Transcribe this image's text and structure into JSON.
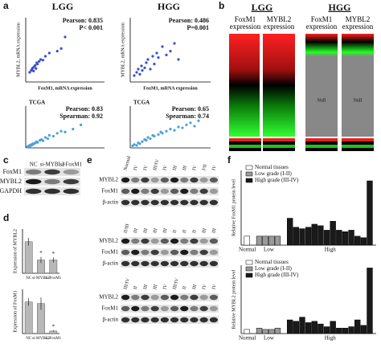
{
  "panel_labels": [
    "a",
    "b",
    "c",
    "d",
    "e",
    "f"
  ],
  "panel_a_headers": [
    "LGG",
    "HGG"
  ],
  "heatmap": {
    "groups": [
      {
        "title": "LGG",
        "columns": [
          "FoxM1 expression",
          "MYBL2 expression"
        ]
      },
      {
        "title": "HGG",
        "columns": [
          "FoxM1 expression",
          "MYBL2 expression"
        ],
        "null_labels": [
          "Null",
          "Null"
        ]
      }
    ]
  },
  "blot_c": {
    "lanes": [
      "NC",
      "si-MYBL2",
      "si-FoxM1"
    ],
    "rows": [
      "FoxM1",
      "MYBL2",
      "GAPDH"
    ]
  },
  "blots_e": [
    {
      "lanes": [
        "Normal",
        "IV",
        "IV",
        "III/IV",
        "IV",
        "III",
        "III",
        "IV",
        "I/II",
        "IV"
      ],
      "rows": [
        "MYBL2",
        "FoxM1",
        "β-actin"
      ]
    },
    {
      "lanes": [
        "II/III",
        "III",
        "III",
        "III",
        "III",
        "II",
        "II",
        "II",
        "III",
        "III"
      ],
      "rows": [
        "MYBL2",
        "FoxM1",
        "β-actin"
      ]
    },
    {
      "lanes": [
        "III/IV",
        "II",
        "III",
        "III",
        "IV",
        "III/IV",
        "II",
        "III",
        "IV",
        "IV"
      ],
      "rows": [
        "MYBL2",
        "FoxM1",
        "β-actin"
      ]
    }
  ],
  "chart_data": [
    {
      "type": "scatter",
      "x_label": "FoxM1, mRNA expression",
      "y_label": "MYBL2, mRNA expression",
      "annotations": [
        "Pearson: 0.835",
        "P< 0.001"
      ],
      "color": "#3a4fd0",
      "xlim": [
        0,
        100
      ],
      "ylim": [
        0,
        100
      ],
      "x": [
        5,
        7,
        8,
        9,
        10,
        11,
        12,
        13,
        14,
        15,
        17,
        19,
        22,
        25,
        30,
        40,
        45,
        50
      ],
      "y": [
        15,
        18,
        20,
        22,
        17,
        24,
        26,
        21,
        30,
        28,
        32,
        35,
        34,
        40,
        45,
        48,
        52,
        70
      ]
    },
    {
      "type": "scatter",
      "x_label": "FoxM1, mRNA expression",
      "y_label": "MYBL2, mRNA expression",
      "annotations": [
        "Pearson: 0.486",
        "P=0.001"
      ],
      "color": "#3a4fd0",
      "xlim": [
        0,
        100
      ],
      "ylim": [
        0,
        100
      ],
      "x": [
        5,
        8,
        10,
        12,
        14,
        15,
        18,
        20,
        22,
        25,
        28,
        30,
        33,
        35,
        40,
        45,
        50,
        55,
        60
      ],
      "y": [
        10,
        15,
        20,
        12,
        25,
        18,
        22,
        30,
        35,
        20,
        40,
        28,
        45,
        38,
        55,
        42,
        48,
        60,
        35
      ]
    },
    {
      "type": "scatter",
      "title": "TCGA",
      "annotations": [
        "Pearson: 0.83",
        "Spearman: 0.92"
      ],
      "color": "#4aa0d8",
      "xlim": [
        0,
        100
      ],
      "ylim": [
        0,
        100
      ],
      "x": [
        2,
        3,
        4,
        5,
        6,
        7,
        8,
        9,
        10,
        12,
        14,
        15,
        18,
        20,
        22,
        25,
        28,
        30,
        35,
        40,
        45,
        50,
        60,
        70
      ],
      "y": [
        2,
        4,
        3,
        6,
        5,
        8,
        7,
        10,
        9,
        12,
        15,
        13,
        18,
        20,
        17,
        25,
        22,
        30,
        28,
        35,
        40,
        38,
        45,
        55
      ]
    },
    {
      "type": "scatter",
      "title": "TCGA",
      "annotations": [
        "Pearson: 0.65",
        "Spearman: 0.74"
      ],
      "color": "#4aa0d8",
      "xlim": [
        0,
        100
      ],
      "ylim": [
        0,
        100
      ],
      "x": [
        3,
        5,
        8,
        10,
        12,
        15,
        18,
        20,
        22,
        25,
        28,
        30,
        35,
        38,
        40,
        45,
        50,
        55,
        60,
        65,
        70,
        75,
        80,
        85
      ],
      "y": [
        5,
        8,
        6,
        12,
        10,
        15,
        20,
        18,
        25,
        22,
        30,
        28,
        32,
        38,
        35,
        40,
        45,
        42,
        50,
        48,
        55,
        60,
        52,
        65
      ]
    },
    {
      "type": "bar",
      "y_label": "Expression of MYBL2",
      "categories": [
        "NC",
        "si-MYBL2",
        "si-FoxM1"
      ],
      "values": [
        1.0,
        0.42,
        0.42
      ],
      "errors": [
        0.12,
        0.1,
        0.08
      ],
      "color": "#b8b8b8",
      "ylim": [
        0,
        1.4
      ],
      "annotations": [
        {
          "text": "*",
          "category": "si-MYBL2"
        },
        {
          "text": "*",
          "category": "si-FoxM1"
        }
      ]
    },
    {
      "type": "bar",
      "y_label": "Expression of FoxM1",
      "categories": [
        "NC",
        "si-MYBL2",
        "si-FoxM1"
      ],
      "values": [
        1.0,
        0.95,
        0.08
      ],
      "errors": [
        0.12,
        0.2,
        0.02
      ],
      "color": "#b8b8b8",
      "ylim": [
        0,
        1.4
      ],
      "annotations": [
        {
          "text": "*",
          "category": "si-FoxM1"
        }
      ]
    },
    {
      "type": "group_bar",
      "y_label": "Relative FoxM1 protein level",
      "group_labels": [
        "Normal",
        "Low",
        "High"
      ],
      "ylim": [
        0,
        5
      ],
      "series": [
        {
          "name": "Normal tissues",
          "color": "#ffffff",
          "values": [
            0.6
          ]
        },
        {
          "name": "Low grade (I-II)",
          "color": "#9a9a9a",
          "values": [
            0.6,
            0.6,
            0.6,
            0.6
          ]
        },
        {
          "name": "High grade (III-IV)",
          "color": "#1a1a1a",
          "values": [
            1.8,
            1.2,
            1.1,
            1.2,
            1.4,
            1.3,
            1.0,
            1.6,
            1.0,
            0.9,
            1.0,
            0.6,
            0.5,
            4.3
          ]
        }
      ]
    },
    {
      "type": "group_bar",
      "y_label": "Relative MYBL2 protein level",
      "group_labels": [
        "Normal",
        "Low",
        "High"
      ],
      "ylim": [
        0,
        5
      ],
      "series": [
        {
          "name": "Normal tissues",
          "color": "#ffffff",
          "values": [
            0.3
          ]
        },
        {
          "name": "Low grade (I-II)",
          "color": "#9a9a9a",
          "values": [
            0.4,
            0.3,
            0.3,
            0.4
          ]
        },
        {
          "name": "High grade (III-IV)",
          "color": "#1a1a1a",
          "values": [
            1.0,
            0.9,
            1.2,
            0.8,
            0.9,
            0.7,
            0.5,
            0.9,
            0.4,
            0.4,
            0.5,
            1.0,
            0.6,
            4.8
          ]
        }
      ]
    }
  ]
}
